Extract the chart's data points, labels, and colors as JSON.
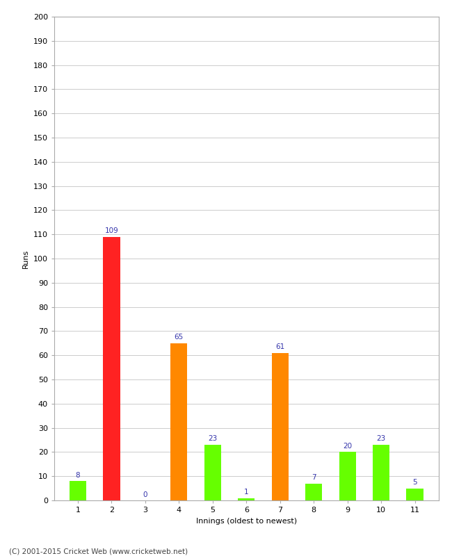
{
  "xlabel": "Innings (oldest to newest)",
  "ylabel": "Runs",
  "categories": [
    "1",
    "2",
    "3",
    "4",
    "5",
    "6",
    "7",
    "8",
    "9",
    "10",
    "11"
  ],
  "values": [
    8,
    109,
    0,
    65,
    23,
    1,
    61,
    7,
    20,
    23,
    5
  ],
  "colors": [
    "#66ff00",
    "#ff2222",
    "#66ff00",
    "#ff8800",
    "#66ff00",
    "#66ff00",
    "#ff8800",
    "#66ff00",
    "#66ff00",
    "#66ff00",
    "#66ff00"
  ],
  "ylim": [
    0,
    200
  ],
  "yticks": [
    0,
    10,
    20,
    30,
    40,
    50,
    60,
    70,
    80,
    90,
    100,
    110,
    120,
    130,
    140,
    150,
    160,
    170,
    180,
    190,
    200
  ],
  "label_color": "#3333aa",
  "label_fontsize": 7.5,
  "axis_fontsize": 8,
  "ylabel_fontsize": 8,
  "xlabel_fontsize": 8,
  "bg_color": "#ffffff",
  "grid_color": "#cccccc",
  "footer": "(C) 2001-2015 Cricket Web (www.cricketweb.net)",
  "bar_width": 0.5
}
